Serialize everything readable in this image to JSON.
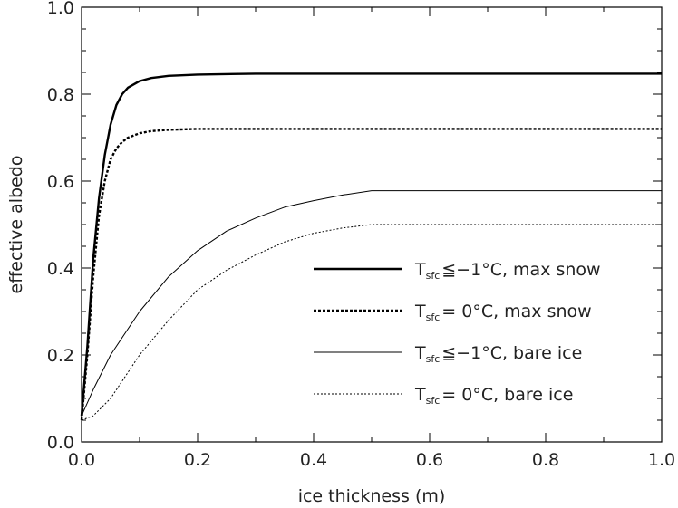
{
  "chart_data": {
    "type": "line",
    "xlabel": "ice thickness (m)",
    "ylabel": "effective albedo",
    "xlim": [
      0.0,
      1.0
    ],
    "ylim": [
      0.0,
      1.0
    ],
    "x_ticks": [
      "0.0",
      "0.2",
      "0.4",
      "0.6",
      "0.8",
      "1.0"
    ],
    "y_ticks": [
      "0.0",
      "0.2",
      "0.4",
      "0.6",
      "0.8",
      "1.0"
    ],
    "grid": false,
    "legend_position": "lower-right",
    "series": [
      {
        "name": "T_sfc ≦ −1°C, max snow",
        "legend": {
          "T": "T",
          "sub": "sfc",
          "rest": "≦−1°C, max snow"
        },
        "style": "solid-thick",
        "x": [
          0.0,
          0.01,
          0.02,
          0.03,
          0.04,
          0.05,
          0.06,
          0.07,
          0.08,
          0.1,
          0.12,
          0.15,
          0.2,
          0.3,
          0.5,
          0.7,
          1.0
        ],
        "y": [
          0.06,
          0.22,
          0.42,
          0.56,
          0.66,
          0.73,
          0.775,
          0.8,
          0.815,
          0.83,
          0.837,
          0.842,
          0.845,
          0.847,
          0.847,
          0.847,
          0.847
        ]
      },
      {
        "name": "T_sfc = 0°C, max snow",
        "legend": {
          "T": "T",
          "sub": "sfc",
          "rest": "= 0°C, max snow"
        },
        "style": "dotted-thick",
        "x": [
          0.0,
          0.01,
          0.02,
          0.03,
          0.04,
          0.05,
          0.06,
          0.07,
          0.08,
          0.1,
          0.12,
          0.15,
          0.2,
          0.3,
          0.5,
          0.7,
          1.0
        ],
        "y": [
          0.05,
          0.2,
          0.38,
          0.52,
          0.6,
          0.65,
          0.675,
          0.69,
          0.7,
          0.71,
          0.715,
          0.718,
          0.72,
          0.72,
          0.72,
          0.72,
          0.72
        ]
      },
      {
        "name": "T_sfc ≦ −1°C, bare ice",
        "legend": {
          "T": "T",
          "sub": "sfc",
          "rest": "≦−1°C, bare ice"
        },
        "style": "solid-thin",
        "x": [
          0.0,
          0.02,
          0.05,
          0.1,
          0.15,
          0.2,
          0.25,
          0.3,
          0.35,
          0.4,
          0.45,
          0.5,
          0.6,
          0.7,
          0.8,
          0.9,
          1.0
        ],
        "y": [
          0.06,
          0.12,
          0.2,
          0.3,
          0.38,
          0.44,
          0.485,
          0.515,
          0.54,
          0.555,
          0.568,
          0.578,
          0.578,
          0.578,
          0.578,
          0.578,
          0.578
        ]
      },
      {
        "name": "T_sfc = 0°C, bare ice",
        "legend": {
          "T": "T",
          "sub": "sfc",
          "rest": "= 0°C, bare ice"
        },
        "style": "dotted-thin",
        "x": [
          0.0,
          0.02,
          0.05,
          0.1,
          0.15,
          0.2,
          0.25,
          0.3,
          0.35,
          0.4,
          0.45,
          0.5,
          0.6,
          0.7,
          0.8,
          0.9,
          1.0
        ],
        "y": [
          0.05,
          0.06,
          0.1,
          0.2,
          0.28,
          0.35,
          0.395,
          0.43,
          0.46,
          0.48,
          0.492,
          0.5,
          0.5,
          0.5,
          0.5,
          0.5,
          0.5
        ]
      }
    ]
  }
}
